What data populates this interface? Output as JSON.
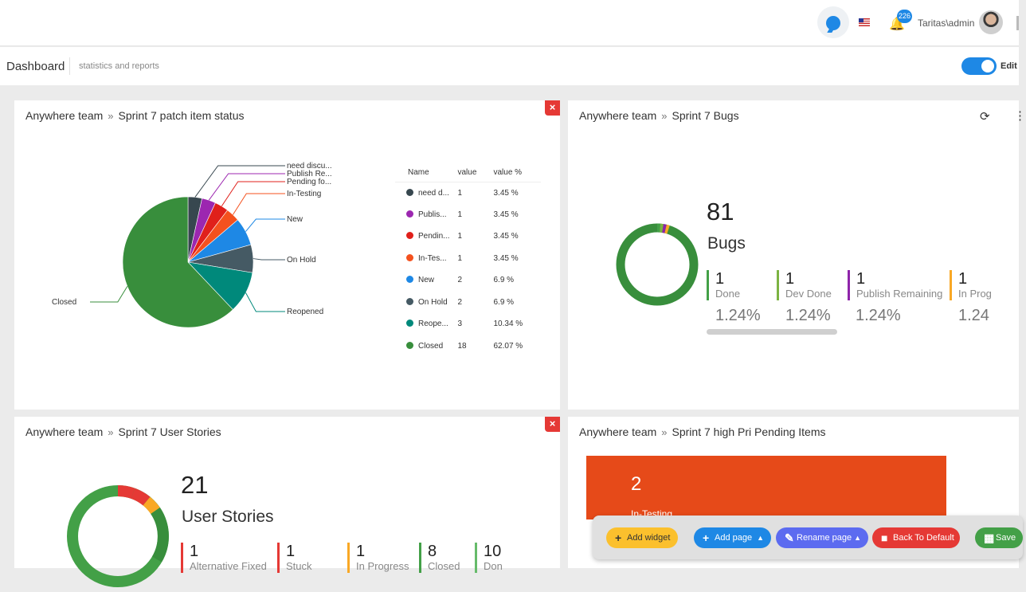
{
  "topbar": {
    "notification_count": "226",
    "user_name": "Taritas\\admin"
  },
  "header": {
    "title": "Dashboard",
    "subtitle": "statistics and reports",
    "edit_label": "Edit"
  },
  "widgets": {
    "patch_status": {
      "team": "Anywhere team",
      "title": "Sprint 7 patch item status",
      "close": "×",
      "table_headers": [
        "Name",
        "value",
        "value %"
      ],
      "rows": [
        {
          "name": "need d...",
          "value": "1",
          "pct": "3.45 %",
          "color": "#37474f"
        },
        {
          "name": "Publis...",
          "value": "1",
          "pct": "3.45 %",
          "color": "#9c27b0"
        },
        {
          "name": "Pendin...",
          "value": "1",
          "pct": "3.45 %",
          "color": "#e0201b"
        },
        {
          "name": "In-Tes...",
          "value": "1",
          "pct": "3.45 %",
          "color": "#f4511e"
        },
        {
          "name": "New",
          "value": "2",
          "pct": "6.9 %",
          "color": "#1e88e5"
        },
        {
          "name": "On Hold",
          "value": "2",
          "pct": "6.9 %",
          "color": "#455a64"
        },
        {
          "name": "Reope...",
          "value": "3",
          "pct": "10.34 %",
          "color": "#00897b"
        },
        {
          "name": "Closed",
          "value": "18",
          "pct": "62.07 %",
          "color": "#388e3c"
        }
      ],
      "pie_labels": [
        "need discu...",
        "Publish Re...",
        "Pending fo...",
        "In-Testing",
        "New",
        "On Hold",
        "Reopened",
        "Closed"
      ]
    },
    "bugs": {
      "team": "Anywhere team",
      "title": "Sprint 7 Bugs",
      "total": "81",
      "label": "Bugs",
      "stats": [
        {
          "count": "1",
          "label": "Done",
          "pct": "1.24%",
          "color": "#43a047"
        },
        {
          "count": "1",
          "label": "Dev Done",
          "pct": "1.24%",
          "color": "#7cb342"
        },
        {
          "count": "1",
          "label": "Publish Remaining",
          "pct": "1.24%",
          "color": "#8e24aa"
        },
        {
          "count": "1",
          "label": "In Prog",
          "pct": "1.24",
          "color": "#f9a825"
        }
      ]
    },
    "user_stories": {
      "team": "Anywhere team",
      "title": "Sprint 7 User Stories",
      "close": "×",
      "total": "21",
      "label": "User Stories",
      "stats": [
        {
          "count": "1",
          "label": "Alternative Fixed",
          "color": "#e53935"
        },
        {
          "count": "1",
          "label": "Stuck",
          "color": "#e53935"
        },
        {
          "count": "1",
          "label": "In Progress",
          "color": "#f9a825"
        },
        {
          "count": "8",
          "label": "Closed",
          "color": "#43a047"
        },
        {
          "count": "10",
          "label": "Don",
          "color": "#66bb6a"
        }
      ]
    },
    "high_pri": {
      "team": "Anywhere team",
      "title": "Sprint 7 high Pri Pending Items",
      "card_count": "2",
      "card_label": "In-Testing"
    }
  },
  "chart_data": [
    {
      "type": "pie",
      "title": "Sprint 7 patch item status",
      "categories": [
        "need discu...",
        "Publish Re...",
        "Pending fo...",
        "In-Testing",
        "New",
        "On Hold",
        "Reopened",
        "Closed"
      ],
      "values": [
        1,
        1,
        1,
        1,
        2,
        2,
        3,
        18
      ],
      "colors": [
        "#37474f",
        "#9c27b0",
        "#e0201b",
        "#f4511e",
        "#1e88e5",
        "#455a64",
        "#00897b",
        "#388e3c"
      ]
    },
    {
      "type": "pie",
      "title": "Sprint 7 Bugs",
      "categories": [
        "Done",
        "Dev Done",
        "Publish Remaining",
        "In Prog"
      ],
      "values": [
        1,
        1,
        1,
        1
      ],
      "colors": [
        "#43a047",
        "#7cb342",
        "#8e24aa",
        "#f9a825"
      ]
    }
  ],
  "actions": {
    "add_widget": "Add widget",
    "add_page": "Add page",
    "rename_page": "Rename page",
    "back_to_default": "Back To Default",
    "save": "Save"
  }
}
